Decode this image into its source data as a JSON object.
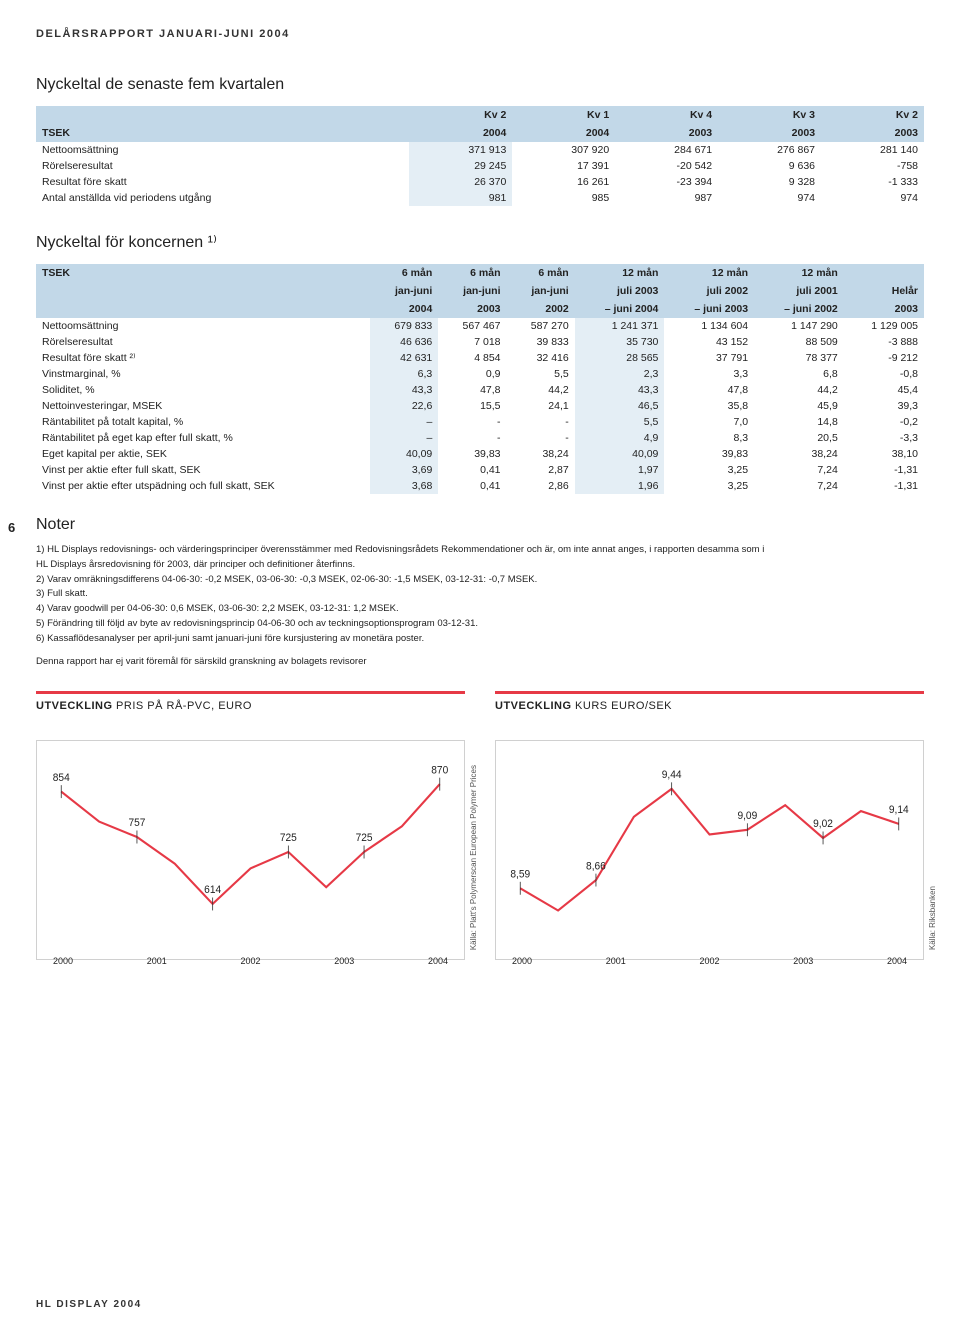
{
  "header": "DELÅRSRAPPORT JANUARI-JUNI 2004",
  "footer": "HL DISPLAY 2004",
  "page_number": "6",
  "table1": {
    "title": "Nyckeltal de senaste fem kvartalen",
    "head_row1": [
      "",
      "Kv 2",
      "Kv 1",
      "Kv 4",
      "Kv 3",
      "Kv 2"
    ],
    "head_row2": [
      "TSEK",
      "2004",
      "2004",
      "2003",
      "2003",
      "2003"
    ],
    "rows": [
      [
        "Nettoomsättning",
        "371 913",
        "307 920",
        "284 671",
        "276 867",
        "281 140"
      ],
      [
        "Rörelseresultat",
        "29 245",
        "17 391",
        "-20 542",
        "9 636",
        "-758"
      ],
      [
        "Resultat före skatt",
        "26 370",
        "16 261",
        "-23 394",
        "9 328",
        "-1 333"
      ],
      [
        "Antal anställda vid periodens utgång",
        "981",
        "985",
        "987",
        "974",
        "974"
      ]
    ]
  },
  "table2": {
    "title": "Nyckeltal för koncernen ¹⁾",
    "head_row1": [
      "TSEK",
      "6 mån",
      "6 mån",
      "6 mån",
      "12 mån",
      "12 mån",
      "12 mån",
      ""
    ],
    "head_row2": [
      "",
      "jan-juni",
      "jan-juni",
      "jan-juni",
      "juli 2003",
      "juli 2002",
      "juli 2001",
      "Helår"
    ],
    "head_row3": [
      "",
      "2004",
      "2003",
      "2002",
      "– juni 2004",
      "– juni 2003",
      "– juni 2002",
      "2003"
    ],
    "rows": [
      [
        "Nettoomsättning",
        "679 833",
        "567 467",
        "587 270",
        "1 241 371",
        "1 134 604",
        "1 147 290",
        "1 129 005"
      ],
      [
        "Rörelseresultat",
        "46 636",
        "7 018",
        "39 833",
        "35 730",
        "43 152",
        "88 509",
        "-3 888"
      ],
      [
        "Resultat före skatt ²⁾",
        "42 631",
        "4 854",
        "32 416",
        "28 565",
        "37 791",
        "78 377",
        "-9 212"
      ],
      [
        "Vinstmarginal, %",
        "6,3",
        "0,9",
        "5,5",
        "2,3",
        "3,3",
        "6,8",
        "-0,8"
      ],
      [
        "Soliditet, %",
        "43,3",
        "47,8",
        "44,2",
        "43,3",
        "47,8",
        "44,2",
        "45,4"
      ],
      [
        "Nettoinvesteringar, MSEK",
        "22,6",
        "15,5",
        "24,1",
        "46,5",
        "35,8",
        "45,9",
        "39,3"
      ],
      [
        "Räntabilitet på totalt kapital, %",
        "–",
        "-",
        "-",
        "5,5",
        "7,0",
        "14,8",
        "-0,2"
      ],
      [
        "Räntabilitet på eget kap efter full skatt, %",
        "–",
        "-",
        "-",
        "4,9",
        "8,3",
        "20,5",
        "-3,3"
      ],
      [
        "Eget kapital per aktie, SEK",
        "40,09",
        "39,83",
        "38,24",
        "40,09",
        "39,83",
        "38,24",
        "38,10"
      ],
      [
        "Vinst per aktie efter full skatt, SEK",
        "3,69",
        "0,41",
        "2,87",
        "1,97",
        "3,25",
        "7,24",
        "-1,31"
      ],
      [
        "Vinst per aktie efter utspädning och full skatt, SEK",
        "3,68",
        "0,41",
        "2,86",
        "1,96",
        "3,25",
        "7,24",
        "-1,31"
      ]
    ]
  },
  "notes": {
    "title": "Noter",
    "lines": [
      "1) HL Displays redovisnings- och värderingsprinciper överensstämmer med Redovisningsrådets Rekommendationer och är, om inte annat anges, i rapporten desamma som i",
      "HL Displays årsredovisning för 2003, där principer och definitioner återfinns.",
      "2) Varav omräkningsdifferens 04-06-30: -0,2 MSEK, 03-06-30: -0,3 MSEK, 02-06-30: -1,5 MSEK, 03-12-31: -0,7 MSEK.",
      "3) Full skatt.",
      "4) Varav goodwill per 04-06-30: 0,6 MSEK, 03-06-30: 2,2 MSEK, 03-12-31: 1,2 MSEK.",
      "5) Förändring till följd av byte av redovisningsprincip 04-06-30 och av teckningsoptionsprogram 03-12-31.",
      "6) Kassaflödesanalyser per april-juni samt januari-juni före kursjustering av monetära poster."
    ],
    "audit_note": "Denna rapport har ej varit föremål för särskild granskning av bolagets revisorer"
  },
  "chart_left": {
    "type": "line",
    "title_strong": "UTVECKLING",
    "title_rest": " PRIS PÅ RÅ-PVC, EURO",
    "x_labels": [
      "2000",
      "2001",
      "2002",
      "2003",
      "2004"
    ],
    "point_labels": [
      "854",
      "757",
      "614",
      "725",
      "725",
      "870"
    ],
    "line_color": "#e63946",
    "background": "#ffffff",
    "source": "Källa: Platt's Polymerscan European Polymer Prices",
    "series_y": [
      854,
      790,
      757,
      700,
      614,
      690,
      725,
      650,
      725,
      780,
      870
    ],
    "ylim": [
      550,
      900
    ]
  },
  "chart_right": {
    "type": "line",
    "title_strong": "UTVECKLING",
    "title_rest": " KURS EURO/SEK",
    "x_labels": [
      "2000",
      "2001",
      "2002",
      "2003",
      "2004"
    ],
    "point_labels": [
      "8,59",
      "8,66",
      "9,44",
      "9,09",
      "9,02",
      "9,14"
    ],
    "line_color": "#e63946",
    "background": "#ffffff",
    "source": "Källa: Riksbanken",
    "series_y": [
      8.59,
      8.4,
      8.66,
      9.2,
      9.44,
      9.05,
      9.09,
      9.3,
      9.02,
      9.25,
      9.14
    ],
    "ylim": [
      8.2,
      9.6
    ]
  }
}
